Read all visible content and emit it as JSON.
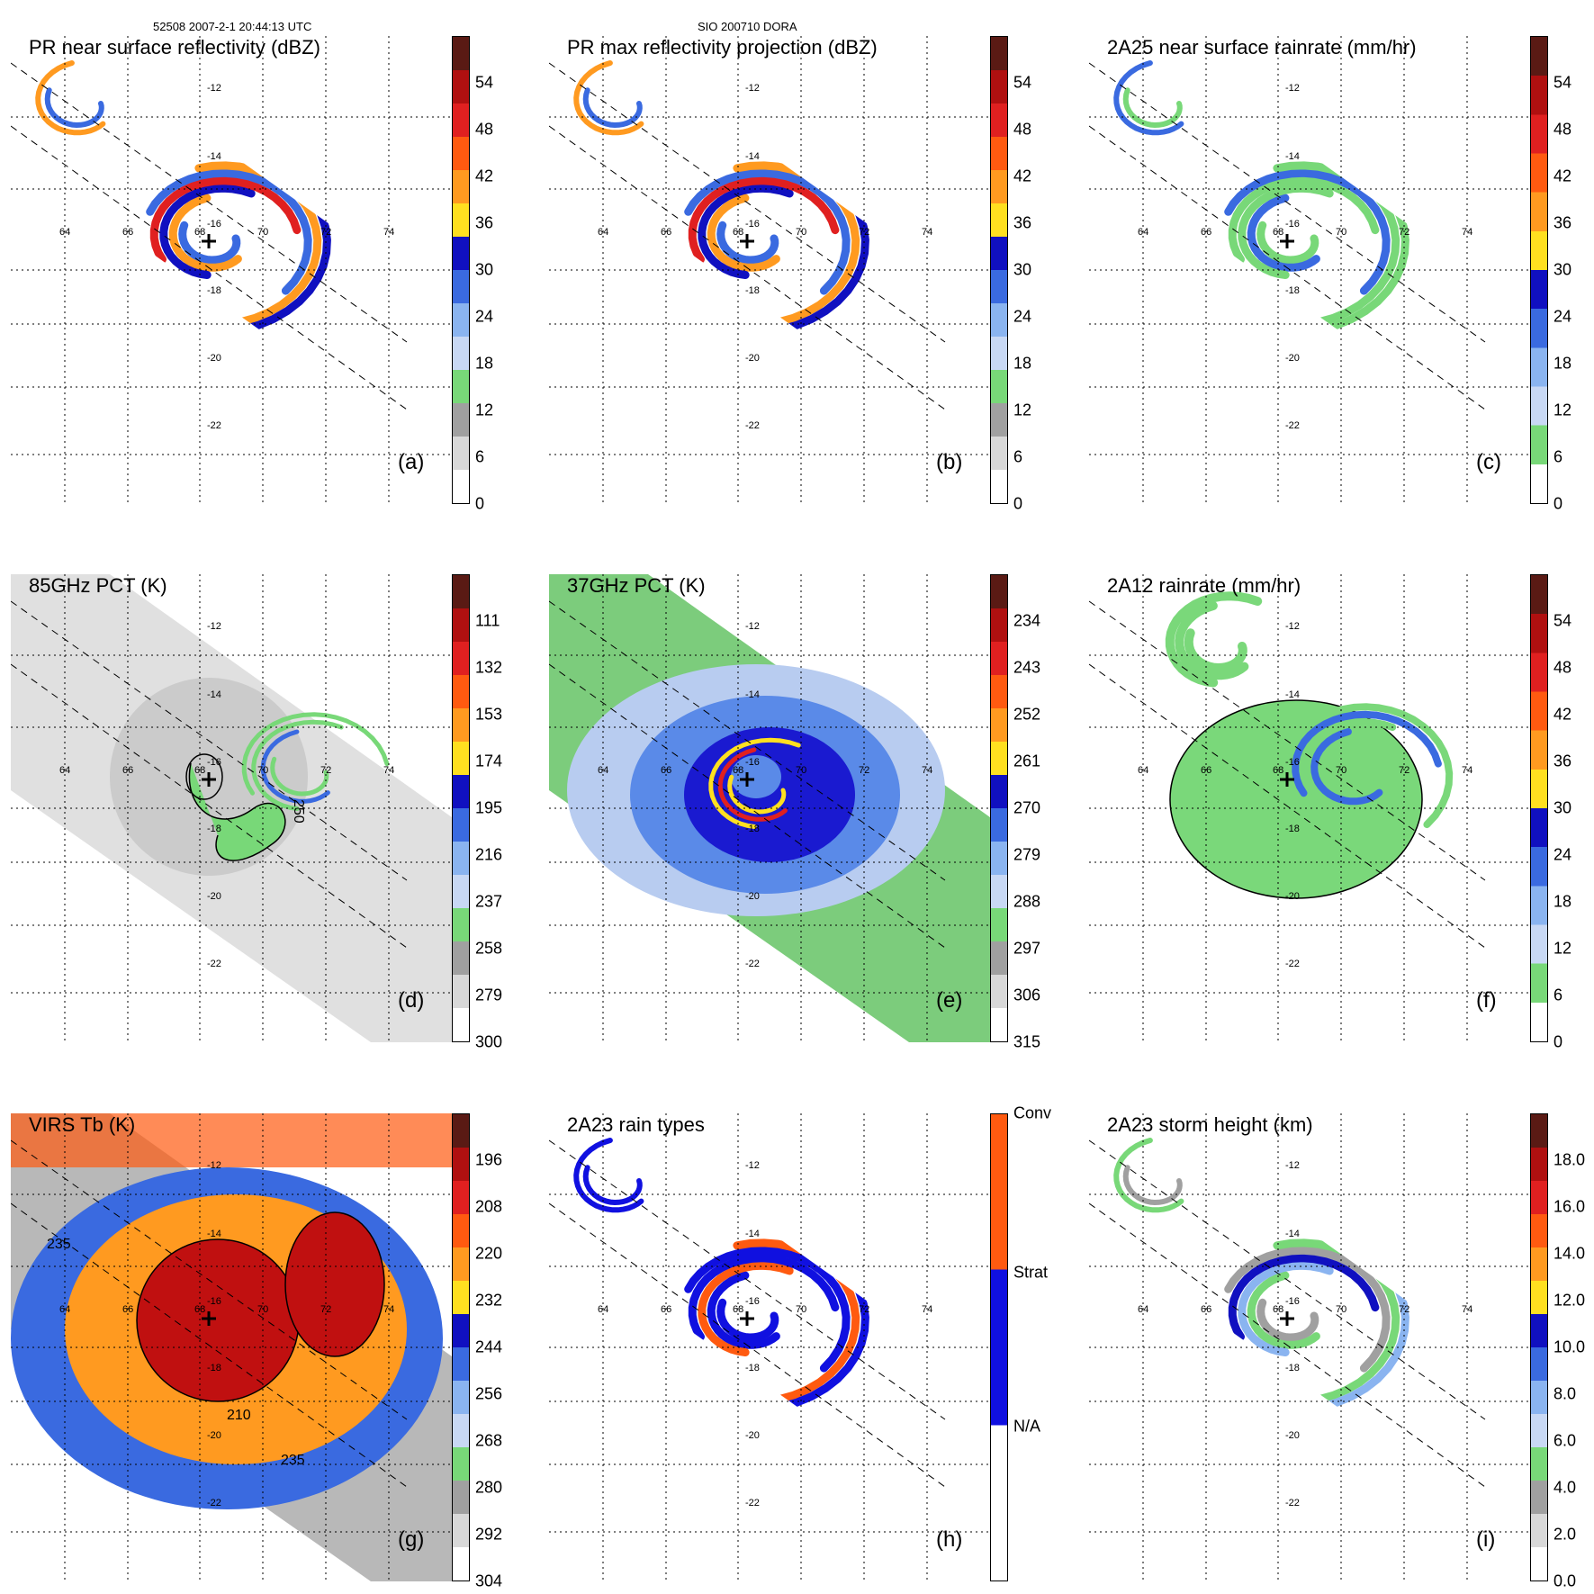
{
  "header": {
    "left": "52508 2007-2-1 20:44:13 UTC",
    "center": "SIO 200710 DORA"
  },
  "axes": {
    "lon_labels": [
      "64",
      "66",
      "68",
      "70",
      "72",
      "74"
    ],
    "lat_labels": [
      "-12",
      "-14",
      "-16",
      "-18",
      "-20",
      "-22"
    ]
  },
  "panels": [
    {
      "id": "a",
      "title": "PR near surface reflectivity (dBZ)",
      "letter": "(a)",
      "ticks": [
        "54",
        "48",
        "42",
        "36",
        "30",
        "24",
        "18",
        "12",
        "6",
        "0"
      ],
      "colors": [
        "#5a1a14",
        "#b01010",
        "#e02020",
        "#ff5a10",
        "#ff9a20",
        "#ffe020",
        "#1010c0",
        "#3a6ae0",
        "#8ab4f0",
        "#c8d8f4",
        "#78d878",
        "#a0a0a0",
        "#d8d8d8",
        "#ffffff"
      ],
      "style": "swath-pr"
    },
    {
      "id": "b",
      "title": "PR max reflectivity projection (dBZ)",
      "letter": "(b)",
      "ticks": [
        "54",
        "48",
        "42",
        "36",
        "30",
        "24",
        "18",
        "12",
        "6",
        "0"
      ],
      "colors": [
        "#5a1a14",
        "#b01010",
        "#e02020",
        "#ff5a10",
        "#ff9a20",
        "#ffe020",
        "#1010c0",
        "#3a6ae0",
        "#8ab4f0",
        "#c8d8f4",
        "#78d878",
        "#a0a0a0",
        "#d8d8d8",
        "#ffffff"
      ],
      "style": "swath-pr"
    },
    {
      "id": "c",
      "title": "2A25 near surface rainrate (mm/hr)",
      "letter": "(c)",
      "ticks": [
        "54",
        "48",
        "42",
        "36",
        "30",
        "24",
        "18",
        "12",
        "6",
        "0"
      ],
      "colors": [
        "#5a1a14",
        "#b01010",
        "#e02020",
        "#ff5a10",
        "#ff9a20",
        "#ffe020",
        "#1010c0",
        "#3a6ae0",
        "#8ab4f0",
        "#c8d8f4",
        "#78d878",
        "#ffffff"
      ],
      "style": "swath-rain"
    },
    {
      "id": "d",
      "title": "85GHz PCT (K)",
      "letter": "(d)",
      "ticks": [
        "111",
        "132",
        "153",
        "174",
        "195",
        "216",
        "237",
        "258",
        "279",
        "300"
      ],
      "colors": [
        "#5a1a14",
        "#b01010",
        "#e02020",
        "#ff5a10",
        "#ff9a20",
        "#ffe020",
        "#1010c0",
        "#3a6ae0",
        "#8ab4f0",
        "#c8d8f4",
        "#78d878",
        "#a0a0a0",
        "#d8d8d8",
        "#ffffff"
      ],
      "style": "wide-gray",
      "contour_label": "250"
    },
    {
      "id": "e",
      "title": "37GHz PCT (K)",
      "letter": "(e)",
      "ticks": [
        "234",
        "243",
        "252",
        "261",
        "270",
        "279",
        "288",
        "297",
        "306",
        "315"
      ],
      "colors": [
        "#5a1a14",
        "#b01010",
        "#e02020",
        "#ff5a10",
        "#ff9a20",
        "#ffe020",
        "#1010c0",
        "#3a6ae0",
        "#8ab4f0",
        "#c8d8f4",
        "#78d878",
        "#a0a0a0",
        "#d8d8d8",
        "#ffffff"
      ],
      "style": "wide-blue"
    },
    {
      "id": "f",
      "title": "2A12 rainrate (mm/hr)",
      "letter": "(f)",
      "ticks": [
        "54",
        "48",
        "42",
        "36",
        "30",
        "24",
        "18",
        "12",
        "6",
        "0"
      ],
      "colors": [
        "#5a1a14",
        "#b01010",
        "#e02020",
        "#ff5a10",
        "#ff9a20",
        "#ffe020",
        "#1010c0",
        "#3a6ae0",
        "#8ab4f0",
        "#c8d8f4",
        "#78d878",
        "#ffffff"
      ],
      "style": "wide-rain"
    },
    {
      "id": "g",
      "title": "VIRS Tb (K)",
      "letter": "(g)",
      "ticks": [
        "196",
        "208",
        "220",
        "232",
        "244",
        "256",
        "268",
        "280",
        "292",
        "304"
      ],
      "colors": [
        "#5a1a14",
        "#b01010",
        "#e02020",
        "#ff5a10",
        "#ff9a20",
        "#ffe020",
        "#1010c0",
        "#3a6ae0",
        "#8ab4f0",
        "#c8d8f4",
        "#78d878",
        "#a0a0a0",
        "#d8d8d8",
        "#ffffff"
      ],
      "style": "wide-ir",
      "contour_labels": [
        "210",
        "235",
        "235"
      ]
    },
    {
      "id": "h",
      "title": "2A23 rain types",
      "letter": "(h)",
      "ticks": [
        "Conv",
        "Strat",
        "N/A"
      ],
      "colors": [
        "#ff5a10",
        "#1010e0",
        "#ffffff"
      ],
      "style": "swath-type"
    },
    {
      "id": "i",
      "title": "2A23 storm height (km)",
      "letter": "(i)",
      "ticks": [
        "18.0",
        "16.0",
        "14.0",
        "12.0",
        "10.0",
        "8.0",
        "6.0",
        "4.0",
        "2.0",
        "0.0"
      ],
      "colors": [
        "#5a1a14",
        "#b01010",
        "#e02020",
        "#ff5a10",
        "#ff9a20",
        "#ffe020",
        "#1010c0",
        "#3a6ae0",
        "#8ab4f0",
        "#c8d8f4",
        "#78d878",
        "#a0a0a0",
        "#d8d8d8",
        "#ffffff"
      ],
      "style": "swath-height"
    }
  ]
}
